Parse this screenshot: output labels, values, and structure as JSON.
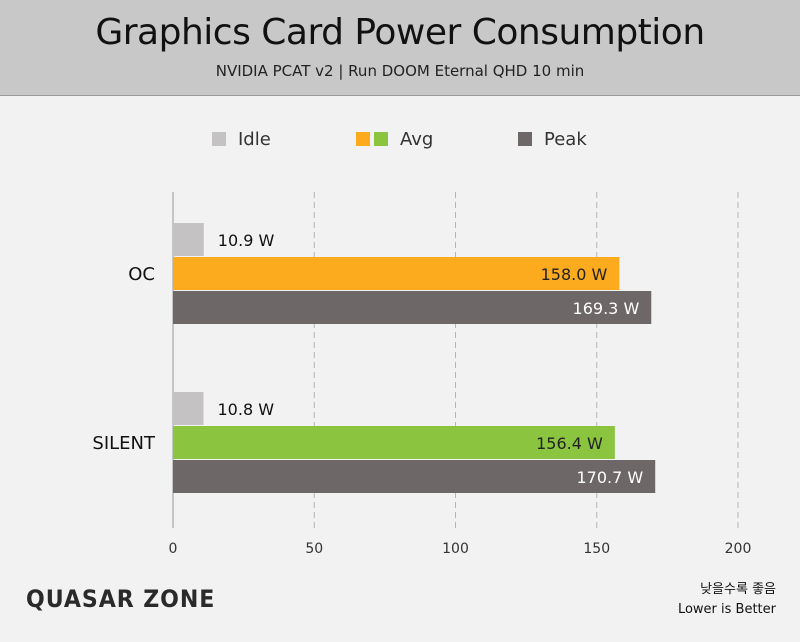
{
  "header": {
    "title": "Graphics Card Power Consumption",
    "subtitle": "NVIDIA PCAT v2  |  Run DOOM Eternal QHD 10 min"
  },
  "legend": {
    "idle": "Idle",
    "avg": "Avg",
    "peak": "Peak"
  },
  "colors": {
    "idle": "#c4c2c2",
    "avg_oc": "#fdab1e",
    "avg_silent": "#8bc53f",
    "peak": "#6d6767",
    "grid": "#b5b5b5"
  },
  "chart_data": {
    "type": "bar",
    "orientation": "horizontal",
    "categories": [
      "OC",
      "SILENT"
    ],
    "series": [
      {
        "name": "Idle",
        "values": [
          10.9,
          10.8
        ]
      },
      {
        "name": "Avg",
        "values": [
          158.0,
          156.4
        ]
      },
      {
        "name": "Peak",
        "values": [
          169.3,
          170.7
        ]
      }
    ],
    "data_labels": [
      [
        "10.9 W",
        "158.0 W",
        "169.3 W"
      ],
      [
        "10.8 W",
        "156.4 W",
        "170.7 W"
      ]
    ],
    "x_ticks": [
      "0",
      "50",
      "100",
      "150",
      "200"
    ],
    "xlim": [
      0,
      200
    ],
    "grid": "vertical dashed",
    "legend_position": "top"
  },
  "footer": {
    "logo": "QUASAR ZONE",
    "note_ko": "낮을수록 좋음",
    "note_en": "Lower is Better"
  }
}
